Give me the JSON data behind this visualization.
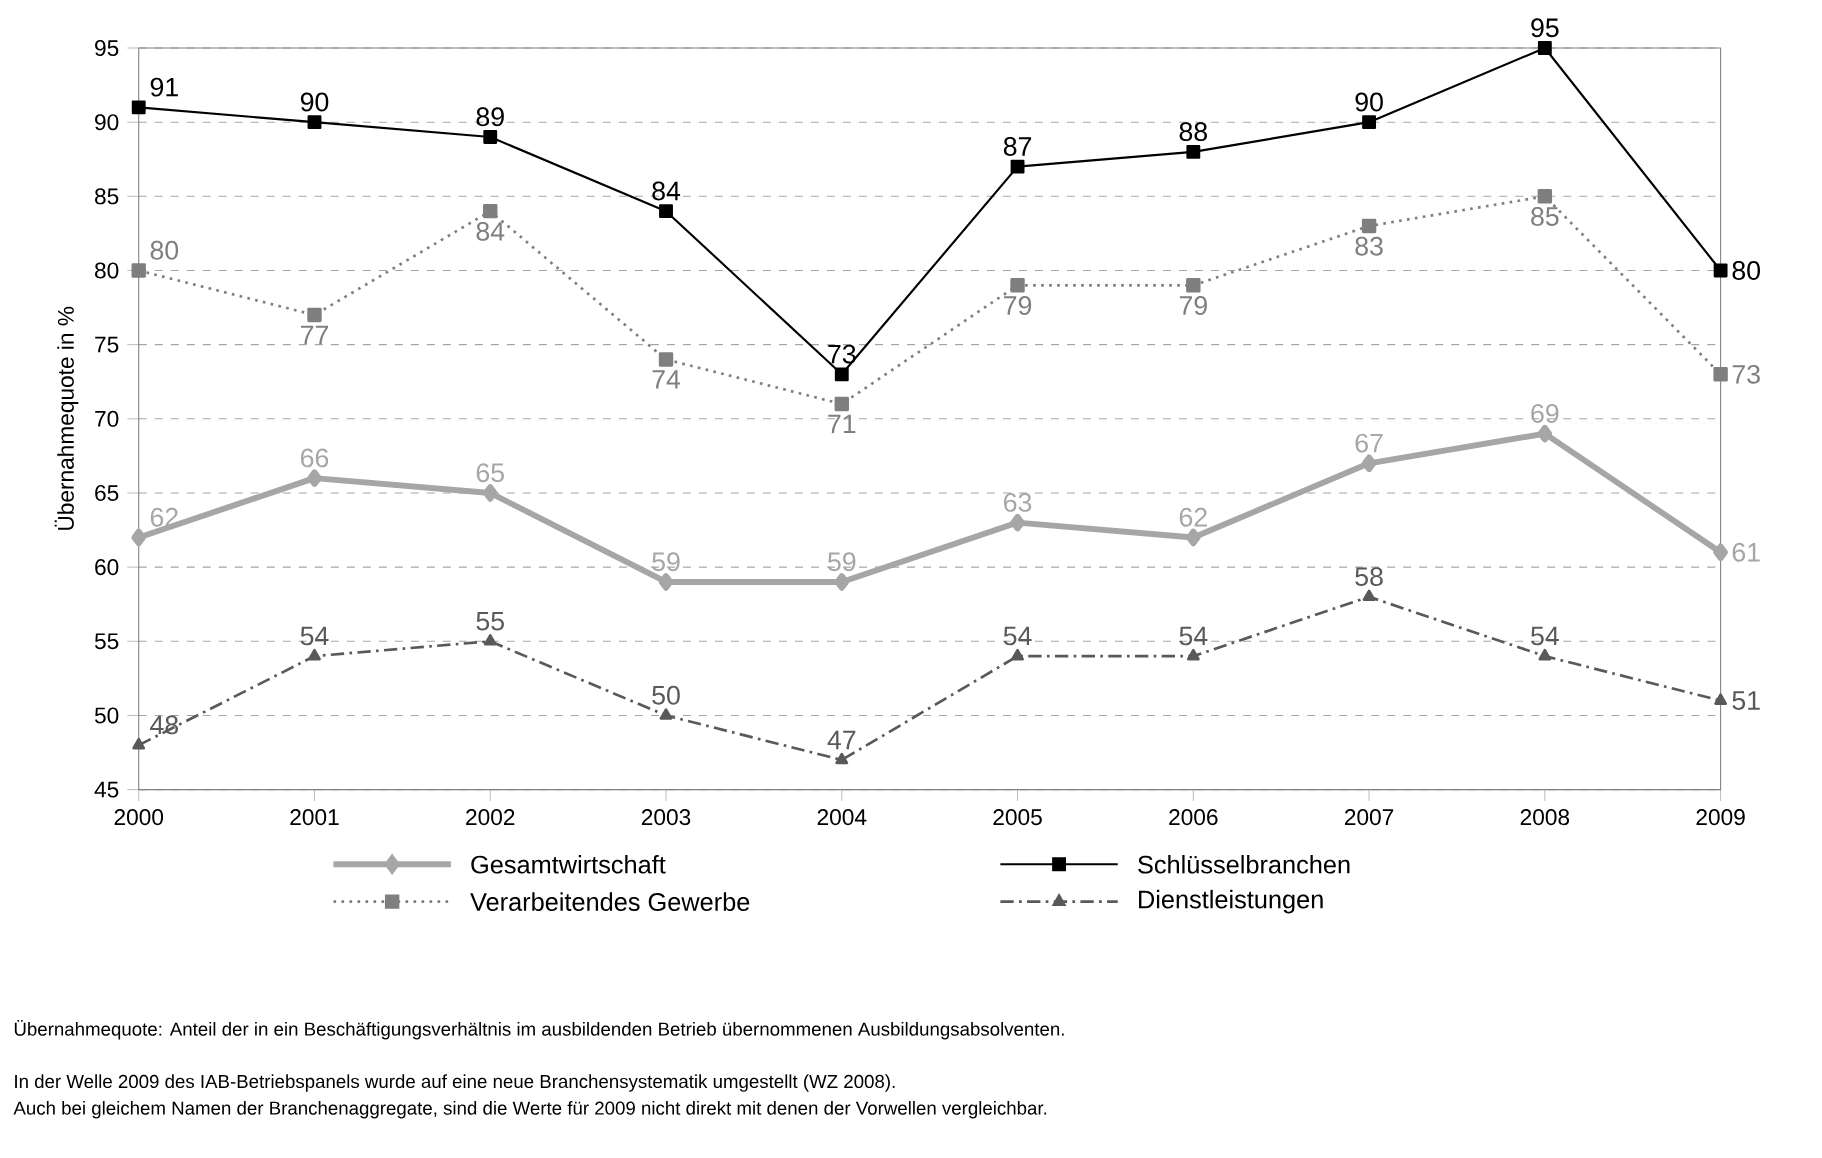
{
  "chart_data": {
    "type": "line",
    "ylabel": "Übernahmequote in %",
    "categories": [
      "2000",
      "2001",
      "2002",
      "2003",
      "2004",
      "2005",
      "2006",
      "2007",
      "2008",
      "2009"
    ],
    "series": [
      {
        "name": "Gesamtwirtschaft",
        "color": "#a6a6a6",
        "marker": "diamond",
        "line_style": "solid",
        "values": [
          62,
          66,
          65,
          59,
          59,
          63,
          62,
          67,
          69,
          61
        ]
      },
      {
        "name": "Schlüsselbranchen",
        "color": "#000000",
        "marker": "square",
        "line_style": "solid",
        "values": [
          91,
          90,
          89,
          84,
          73,
          87,
          88,
          90,
          95,
          80
        ]
      },
      {
        "name": "Verarbeitendes Gewerbe",
        "color": "#7f7f7f",
        "marker": "square",
        "line_style": "dotted",
        "values": [
          80,
          77,
          84,
          74,
          71,
          79,
          79,
          83,
          85,
          73
        ]
      },
      {
        "name": "Dienstleistungen",
        "color": "#595959",
        "marker": "triangle",
        "line_style": "dashdot",
        "values": [
          48,
          54,
          55,
          50,
          47,
          54,
          54,
          58,
          54,
          51
        ]
      }
    ],
    "ylim": [
      45,
      95
    ],
    "yticks": [
      45,
      50,
      55,
      60,
      65,
      70,
      75,
      80,
      85,
      90,
      95
    ],
    "grid": "y",
    "legend": "bottom",
    "data_labels": true,
    "annotations": [
      "Übernahmequote: Anteil der in ein Beschäftigungsverhältnis im ausbildenden Betrieb übernommenen Ausbildungsabsolventen.",
      "In der Welle 2009 des IAB-Betriebspanels wurde auf eine neue Branchensystematik umgestellt (WZ 2008).",
      "Auch bei gleichem Namen der Branchenaggregate, sind die Werte für 2009 nicht direkt mit denen der Vorwellen vergleichbar."
    ]
  }
}
